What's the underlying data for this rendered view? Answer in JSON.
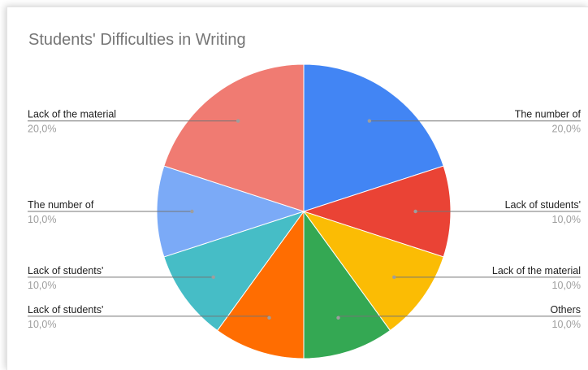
{
  "chart_data": {
    "type": "pie",
    "title": "Students' Difficulties in Writing",
    "legend": "none",
    "slices": [
      {
        "label": "The number of",
        "percent_label": "20,0%",
        "value": 20.0,
        "color": "#4285F4"
      },
      {
        "label": "Lack of students'",
        "percent_label": "10,0%",
        "value": 10.0,
        "color": "#EA4335"
      },
      {
        "label": "Lack of the material",
        "percent_label": "10,0%",
        "value": 10.0,
        "color": "#FBBC04"
      },
      {
        "label": "Others",
        "percent_label": "10,0%",
        "value": 10.0,
        "color": "#34A853"
      },
      {
        "label": "Lack of students'",
        "percent_label": "10,0%",
        "value": 10.0,
        "color": "#FF6D01"
      },
      {
        "label": "Lack of students'",
        "percent_label": "10,0%",
        "value": 10.0,
        "color": "#46BDC6"
      },
      {
        "label": "The number of",
        "percent_label": "10,0%",
        "value": 10.0,
        "color": "#7BAAF7"
      },
      {
        "label": "Lack of the material",
        "percent_label": "20,0%",
        "value": 20.0,
        "color": "#F07B72"
      }
    ]
  }
}
